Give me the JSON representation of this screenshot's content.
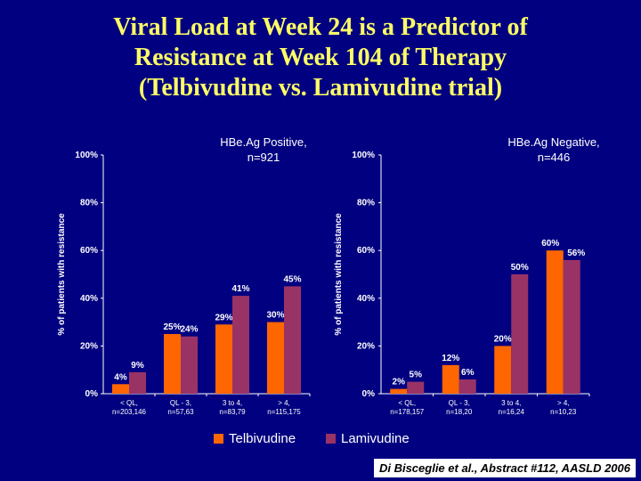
{
  "title_lines": [
    "Viral Load at Week 24 is a Predictor of",
    "Resistance at Week 104 of Therapy",
    "(Telbivudine vs. Lamivudine trial)"
  ],
  "legend": [
    {
      "label": "Telbivudine",
      "color": "#FF6600"
    },
    {
      "label": "Lamivudine",
      "color": "#993366"
    }
  ],
  "citation": "Di Bisceglie et al., Abstract #112, AASLD 2006",
  "colors": {
    "title": "#FFFF66",
    "background": "#000080",
    "axis": "#FFFFFF"
  },
  "chart_data": [
    {
      "type": "bar",
      "title": "HBe.Ag Positive, n=921",
      "title_lines": [
        "HBe.Ag Positive,",
        "n=921"
      ],
      "ylabel": "% of patients with resistance",
      "ylim": [
        0,
        100
      ],
      "yticks": [
        "0%",
        "20%",
        "40%",
        "60%",
        "80%",
        "100%"
      ],
      "categories": [
        [
          "< QL,",
          "n=203,146"
        ],
        [
          "QL - 3,",
          "n=57,63"
        ],
        [
          "3 to 4,",
          "n=83,79"
        ],
        [
          "> 4,",
          "n=115,175"
        ]
      ],
      "series": [
        {
          "name": "Telbivudine",
          "values": [
            4,
            25,
            29,
            30
          ],
          "labels": [
            "4%",
            "25%",
            "29%",
            "30%"
          ]
        },
        {
          "name": "Lamivudine",
          "values": [
            9,
            24,
            41,
            45
          ],
          "labels": [
            "9%",
            "24%",
            "41%",
            "45%"
          ]
        }
      ]
    },
    {
      "type": "bar",
      "title": "HBe.Ag Negative, n=446",
      "title_lines": [
        "HBe.Ag Negative,",
        "n=446"
      ],
      "ylabel": "% of patients with resistance",
      "ylim": [
        0,
        100
      ],
      "yticks": [
        "0%",
        "20%",
        "40%",
        "60%",
        "80%",
        "100%"
      ],
      "categories": [
        [
          "< QL,",
          "n=178,157"
        ],
        [
          "QL - 3,",
          "n=18,20"
        ],
        [
          "3 to 4,",
          "n=16,24"
        ],
        [
          "> 4,",
          "n=10,23"
        ]
      ],
      "series": [
        {
          "name": "Telbivudine",
          "values": [
            2,
            12,
            20,
            60
          ],
          "labels": [
            "2%",
            "12%",
            "20%",
            "60%"
          ]
        },
        {
          "name": "Lamivudine",
          "values": [
            5,
            6,
            50,
            56
          ],
          "labels": [
            "5%",
            "6%",
            "50%",
            "56%"
          ]
        }
      ]
    }
  ]
}
